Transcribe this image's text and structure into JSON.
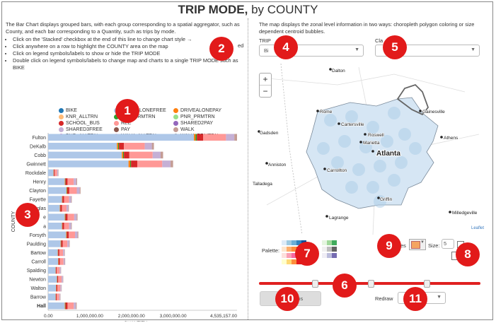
{
  "title": {
    "bold": "TRIP MODE,",
    "rest": " by COUNTY"
  },
  "left": {
    "description": "The Bar Chart displays grouped bars, with each group corresponding to a spatial aggregator, such as County, and each bar corresponding to a Quantity, such as trips by mode.",
    "instructions": [
      "Click on the 'Stacked' checkbox at the end of this line to change chart style →",
      "Click anywhere on a row to highlight the COUNTY area on the map",
      "Click on legend symbols/labels to show or hide the TRIP MODE",
      "Double click on legend symbols/labels to change map and charts to a single TRIP MODE such as BIKE"
    ],
    "stacked_label": "ed"
  },
  "legend": [
    {
      "label": "BIKE",
      "color": "#1f77b4"
    },
    {
      "label": "DRIVEALONEFREE",
      "color": "#aec7e8"
    },
    {
      "label": "DRIVEALONEPAY",
      "color": "#ff7f0e"
    },
    {
      "label": "KNR_ALLTRN",
      "color": "#ffbb78"
    },
    {
      "label": "KNR_PRMTRN",
      "color": "#2ca02c"
    },
    {
      "label": "PNR_PRMTRN",
      "color": "#98df8a"
    },
    {
      "label": "SCHOOL_BUS",
      "color": "#d62728"
    },
    {
      "label": "REE",
      "color": "#ff9896"
    },
    {
      "label": "SHARED2PAY",
      "color": "#9467bd"
    },
    {
      "label": "SHARED3FREE",
      "color": "#c5b0d5"
    },
    {
      "label": "PAY",
      "color": "#8c564b"
    },
    {
      "label": "WALK",
      "color": "#c49c94"
    },
    {
      "label": "PNR_ALLTRN",
      "color": "#e377c2"
    },
    {
      "label": "WALK_ALLTRN",
      "color": "#f7b6d2"
    },
    {
      "label": "WALK_PRMTRN",
      "color": "#7f7f7f"
    }
  ],
  "chart_data": {
    "type": "bar",
    "orientation": "horizontal",
    "stacked": true,
    "ylabel": "COUNTY",
    "xlabel": "QUANTITY",
    "x_ticks": [
      "0.00",
      "1,000,000.00",
      "2,000,000.00",
      "3,000,000.00",
      "4,535,157.00"
    ],
    "xlim": [
      0,
      4535157
    ],
    "categories": [
      "Fulton",
      "DeKalb",
      "Cobb",
      "Gwinnett",
      "Rockdale",
      "Henry",
      "Clayton",
      "Fayette",
      "Douglas",
      "Cherokee",
      "Coweta",
      "Forsyth",
      "Paulding",
      "Bartow",
      "Carroll",
      "Spalding",
      "Newton",
      "Walton",
      "Barrow",
      "Hall"
    ],
    "category_labels": [
      "Fulton",
      "DeKalb",
      "Cobb",
      "Gwinnett",
      "Rockdale",
      "Henry",
      "Clayton",
      "Fayette",
      "glas",
      "e",
      "a",
      "Forsyth",
      "Paulding",
      "Bartow",
      "Carroll",
      "Spalding",
      "Newton",
      "Walton",
      "Barrow",
      "Hall"
    ],
    "bold_category": "Hall",
    "series": [
      {
        "color": "#aec7e8",
        "values": [
          3500000,
          1650000,
          1770000,
          1930000,
          130000,
          400000,
          440000,
          330000,
          280000,
          400000,
          330000,
          430000,
          300000,
          230000,
          240000,
          180000,
          210000,
          190000,
          180000,
          400000
        ]
      },
      {
        "color": "#ff7f0e",
        "values": [
          40000,
          30000,
          30000,
          40000,
          5000,
          10000,
          10000,
          8000,
          8000,
          10000,
          8000,
          10000,
          8000,
          6000,
          6000,
          5000,
          5000,
          5000,
          5000,
          10000
        ]
      },
      {
        "color": "#2ca02c",
        "values": [
          30000,
          20000,
          20000,
          20000,
          3000,
          6000,
          8000,
          5000,
          5000,
          6000,
          5000,
          6000,
          5000,
          4000,
          4000,
          3000,
          3000,
          3000,
          3000,
          6000
        ]
      },
      {
        "color": "#d62728",
        "values": [
          150000,
          120000,
          130000,
          150000,
          20000,
          50000,
          50000,
          40000,
          40000,
          50000,
          40000,
          50000,
          40000,
          30000,
          30000,
          20000,
          25000,
          25000,
          20000,
          50000
        ]
      },
      {
        "color": "#ff9896",
        "values": [
          550000,
          500000,
          560000,
          600000,
          60000,
          150000,
          180000,
          120000,
          110000,
          160000,
          120000,
          150000,
          110000,
          90000,
          90000,
          70000,
          80000,
          70000,
          60000,
          150000
        ]
      },
      {
        "color": "#c5b0d5",
        "values": [
          200000,
          170000,
          190000,
          200000,
          20000,
          60000,
          70000,
          50000,
          40000,
          60000,
          50000,
          60000,
          40000,
          30000,
          30000,
          25000,
          30000,
          25000,
          20000,
          50000
        ]
      },
      {
        "color": "#c49c94",
        "values": [
          65157,
          50000,
          60000,
          60000,
          10000,
          20000,
          20000,
          15000,
          15000,
          20000,
          15000,
          20000,
          15000,
          10000,
          10000,
          8000,
          10000,
          8000,
          8000,
          20000
        ]
      }
    ]
  },
  "right": {
    "description": "The map displays the zonal level information in two ways: choropleth polygon coloring or size dependent centroid bubbles.",
    "trip_label": "TRIP",
    "trip_value": "Bi",
    "class_label_left": "Cla",
    "class_label_right": "on",
    "class_value": "",
    "zoom_in": "+",
    "zoom_out": "−",
    "attribution": "Leaflet",
    "palette_label": "Palette:",
    "bubbles_label": "es",
    "size_label": "Size:",
    "size_value": "5",
    "cycle_button": "Cy              h Maps",
    "redraw_label": "Redraw"
  },
  "map": {
    "cities": [
      {
        "name": "Dalton"
      },
      {
        "name": "Rome"
      },
      {
        "name": "Cartersville"
      },
      {
        "name": "Gainesville"
      },
      {
        "name": "Roswell"
      },
      {
        "name": "Marietta"
      },
      {
        "name": "Atlanta"
      },
      {
        "name": "Athens"
      },
      {
        "name": "Gadsden"
      },
      {
        "name": "Anniston"
      },
      {
        "name": "Carrollton"
      },
      {
        "name": "Talladega"
      },
      {
        "name": "Griffin"
      },
      {
        "name": "Lagrange"
      },
      {
        "name": "Milledgeville"
      }
    ]
  },
  "callouts": [
    "1",
    "2",
    "3",
    "4",
    "5",
    "6",
    "7",
    "8",
    "9",
    "10",
    "11"
  ],
  "colors": {
    "accent": "#e21a1a",
    "slider": "#e02020"
  }
}
